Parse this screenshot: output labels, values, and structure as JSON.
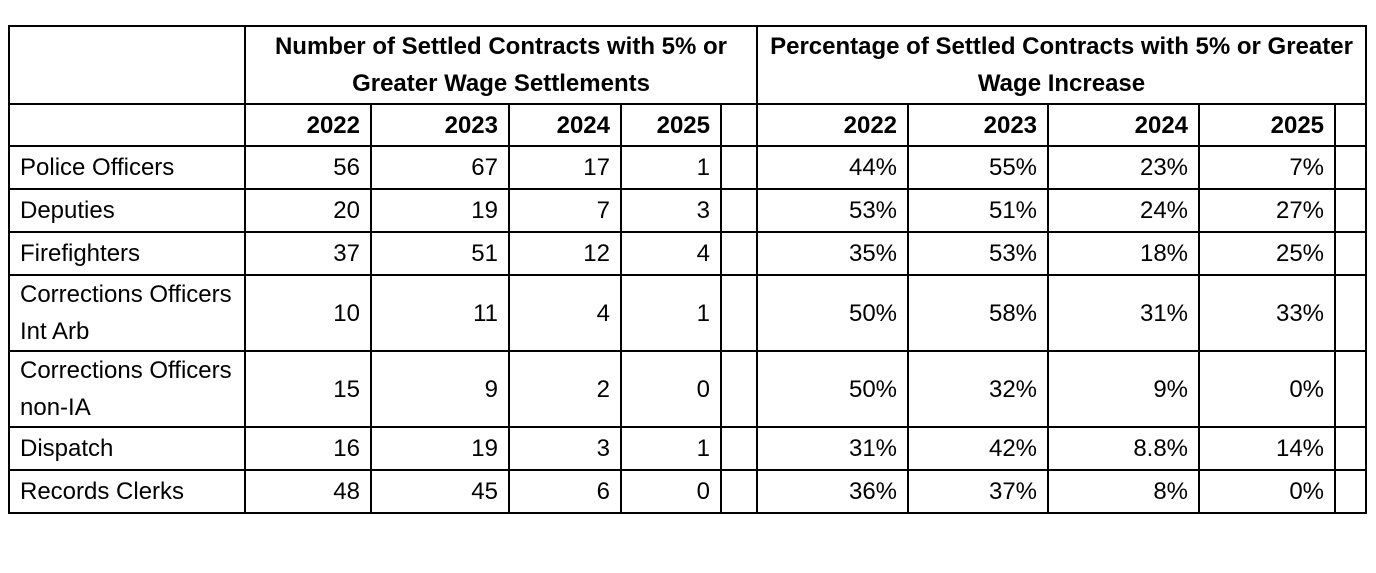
{
  "table": {
    "group_headers": {
      "count": "Number of Settled Contracts with 5% or Greater Wage Settlements",
      "percent": "Percentage of Settled Contracts with 5% or Greater Wage Increase"
    },
    "years": [
      "2022",
      "2023",
      "2024",
      "2025"
    ],
    "rows": [
      {
        "label": "Police Officers",
        "counts": [
          "56",
          "67",
          "17",
          "1"
        ],
        "percents": [
          "44%",
          "55%",
          "23%",
          "7%"
        ]
      },
      {
        "label": "Deputies",
        "counts": [
          "20",
          "19",
          "7",
          "3"
        ],
        "percents": [
          "53%",
          "51%",
          "24%",
          "27%"
        ]
      },
      {
        "label": "Firefighters",
        "counts": [
          "37",
          "51",
          "12",
          "4"
        ],
        "percents": [
          "35%",
          "53%",
          "18%",
          "25%"
        ]
      },
      {
        "label": "Corrections Officers Int Arb",
        "counts": [
          "10",
          "11",
          "4",
          "1"
        ],
        "percents": [
          "50%",
          "58%",
          "31%",
          "33%"
        ]
      },
      {
        "label": "Corrections Officers non-IA",
        "counts": [
          "15",
          "9",
          "2",
          "0"
        ],
        "percents": [
          "50%",
          "32%",
          "9%",
          "0%"
        ]
      },
      {
        "label": "Dispatch",
        "counts": [
          "16",
          "19",
          "3",
          "1"
        ],
        "percents": [
          "31%",
          "42%",
          "8.8%",
          "14%"
        ]
      },
      {
        "label": "Records Clerks",
        "counts": [
          "48",
          "45",
          "6",
          "0"
        ],
        "percents": [
          "36%",
          "37%",
          "8%",
          "0%"
        ]
      }
    ]
  }
}
